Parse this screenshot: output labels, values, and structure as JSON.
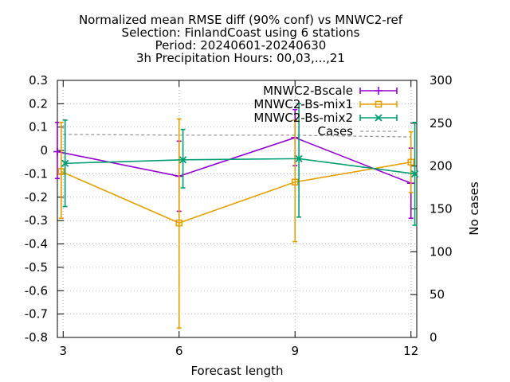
{
  "chart_data": {
    "type": "line",
    "title_lines": [
      "Normalized mean RMSE diff (90% conf) vs MNWC2-ref",
      "Selection: FinlandCoast using      6 stations",
      "Period: 20240601-20240630",
      "3h Precipitation   Hours: 00,03,...,21"
    ],
    "xlabel": "Forecast length",
    "ylabel_right": "No cases",
    "x_ticks": [
      3,
      6,
      9,
      12
    ],
    "y_ticks": [
      -0.8,
      -0.7,
      -0.6,
      -0.5,
      -0.4,
      -0.3,
      -0.2,
      -0.1,
      0,
      0.1,
      0.2,
      0.3
    ],
    "y_tick_labels": [
      "-0.8",
      "-0.7",
      "-0.6",
      "-0.5",
      "-0.4",
      "-0.3",
      "-0.2",
      "-0.1",
      "0",
      "0.1",
      "0.2",
      "0.3"
    ],
    "y2_ticks": [
      0,
      50,
      100,
      150,
      200,
      250,
      300
    ],
    "xlim": [
      2.85,
      12.15
    ],
    "ylim": [
      -0.8,
      0.3
    ],
    "y2lim": [
      0,
      300
    ],
    "grid": true,
    "legend_position": "top-right",
    "series": [
      {
        "name": "MNWC2-Bscale",
        "color": "#9400d3",
        "marker": "plus",
        "x": [
          2.85,
          6,
          9,
          12
        ],
        "y": [
          -0.005,
          -0.11,
          0.055,
          -0.14
        ],
        "err_low": [
          -0.12,
          -0.26,
          -0.065,
          -0.29
        ],
        "err_high": [
          0.12,
          0.04,
          0.175,
          0.01
        ]
      },
      {
        "name": "MNWC2-Bs-mix1",
        "color": "#e69f00",
        "marker": "square",
        "x": [
          2.95,
          6,
          9,
          12
        ],
        "y": [
          -0.09,
          -0.31,
          -0.135,
          -0.05
        ],
        "err_low": [
          -0.29,
          -0.76,
          -0.39,
          -0.18
        ],
        "err_high": [
          0.12,
          0.135,
          0.13,
          0.08
        ]
      },
      {
        "name": "MNWC2-Bs-mix2",
        "color": "#009e73",
        "marker": "cross",
        "x": [
          3.05,
          6.1,
          9.1,
          12.1
        ],
        "y": [
          -0.055,
          -0.04,
          -0.035,
          -0.1
        ],
        "err_low": [
          -0.24,
          -0.16,
          -0.285,
          -0.32
        ],
        "err_high": [
          0.13,
          0.09,
          0.2,
          0.12
        ]
      }
    ],
    "cases": {
      "name": "Cases",
      "color": "#999999",
      "x": [
        3,
        6,
        9,
        12
      ],
      "y": [
        237,
        236,
        236,
        234
      ]
    }
  }
}
